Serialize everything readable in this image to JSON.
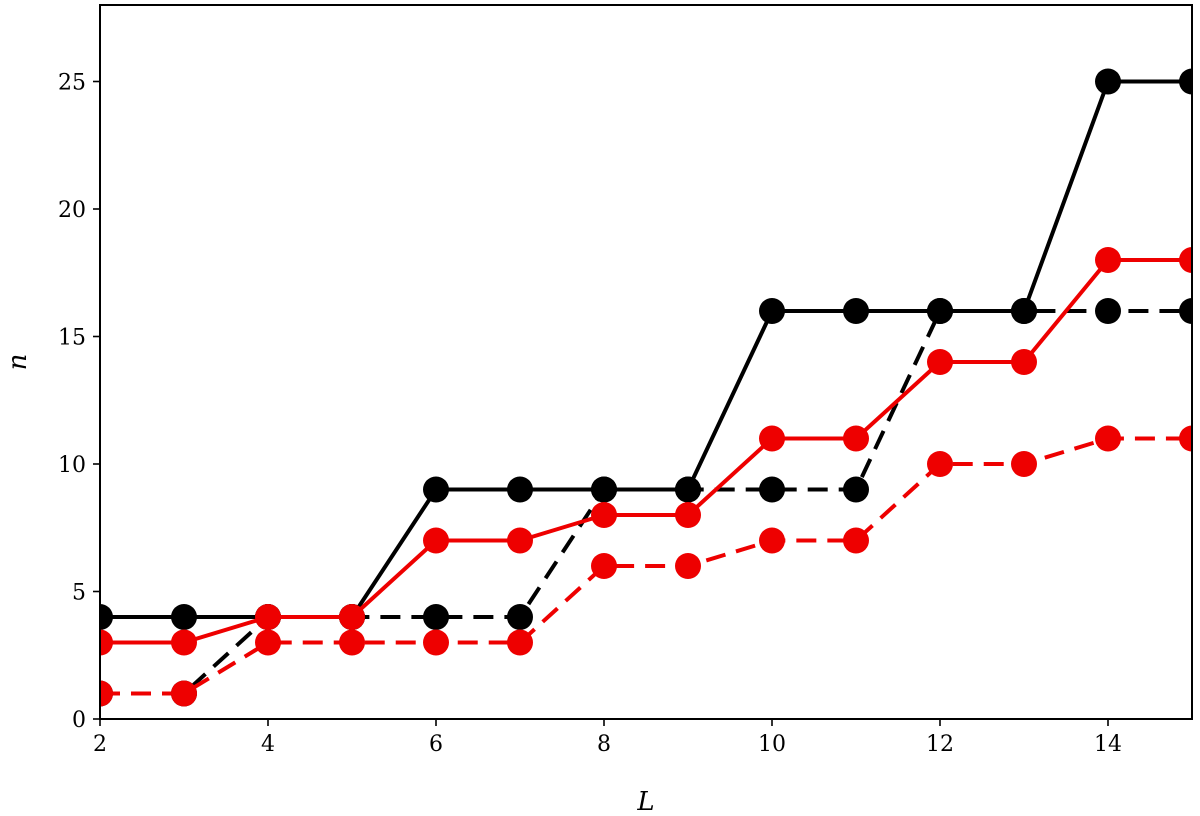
{
  "chart_data": {
    "type": "line",
    "title": "",
    "xlabel": "L",
    "ylabel": "n",
    "xlim": [
      2,
      15
    ],
    "ylim": [
      0,
      28
    ],
    "xticks": [
      2,
      4,
      6,
      8,
      10,
      12,
      14
    ],
    "yticks": [
      0,
      5,
      10,
      15,
      20,
      25
    ],
    "grid": false,
    "legend": "none",
    "x": [
      2,
      3,
      4,
      5,
      6,
      7,
      8,
      9,
      10,
      11,
      12,
      13,
      14,
      15
    ],
    "series": [
      {
        "color": "#000000",
        "style": "solid",
        "values": [
          4,
          4,
          4,
          4,
          9,
          9,
          9,
          9,
          16,
          16,
          16,
          16,
          25,
          25
        ]
      },
      {
        "color": "#000000",
        "style": "dashed",
        "values": [
          1,
          1,
          4,
          4,
          4,
          4,
          9,
          9,
          9,
          9,
          16,
          16,
          16,
          16
        ]
      },
      {
        "color": "#ee0000",
        "style": "solid",
        "values": [
          3,
          3,
          4,
          4,
          7,
          7,
          8,
          8,
          11,
          11,
          14,
          14,
          18,
          18
        ]
      },
      {
        "color": "#ee0000",
        "style": "dashed",
        "values": [
          1,
          1,
          3,
          3,
          3,
          3,
          6,
          6,
          7,
          7,
          10,
          10,
          11,
          11
        ]
      }
    ]
  }
}
